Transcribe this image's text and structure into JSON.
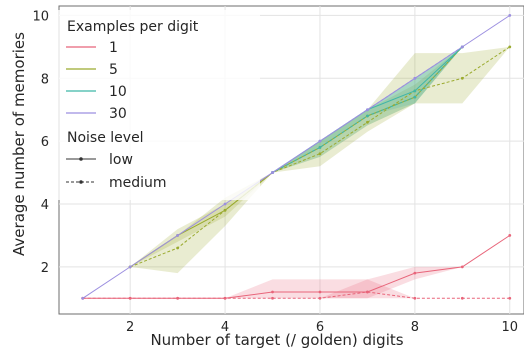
{
  "chart_data": {
    "type": "line",
    "xlabel": "Number of target (/ golden) digits",
    "ylabel": "Average number of memories",
    "xlim": [
      0.5,
      10.3
    ],
    "ylim": [
      0.5,
      10.3
    ],
    "x_ticks": [
      2,
      4,
      6,
      8,
      10
    ],
    "y_ticks": [
      2,
      4,
      6,
      8,
      10
    ],
    "x_tick_labels": [
      "2",
      "4",
      "6",
      "8",
      "10"
    ],
    "y_tick_labels": [
      "2",
      "4",
      "6",
      "8",
      "10"
    ],
    "grid": true,
    "legend": {
      "placement": "top-left",
      "title_hue": "Examples per digit",
      "title_style": "Noise level",
      "hue_entries": [
        {
          "label": "1",
          "color": "#e8657a"
        },
        {
          "label": "5",
          "color": "#9aaa2e"
        },
        {
          "label": "10",
          "color": "#3fb6a8"
        },
        {
          "label": "30",
          "color": "#9c8fe0"
        }
      ],
      "style_entries": [
        {
          "label": "low",
          "dash": "solid"
        },
        {
          "label": "medium",
          "dash": "dashed"
        }
      ]
    },
    "series": [
      {
        "examples": "1",
        "noise": "low",
        "color": "#e8657a",
        "x": [
          1,
          2,
          3,
          4,
          5,
          6,
          7,
          8,
          9,
          10
        ],
        "y": [
          1.0,
          1.0,
          1.0,
          1.0,
          1.2,
          1.2,
          1.2,
          1.8,
          2.0,
          3.0
        ],
        "band": [
          [
            1.0,
            1.0
          ],
          [
            1.0,
            1.0
          ],
          [
            1.0,
            1.0
          ],
          [
            1.0,
            1.0
          ],
          [
            1.0,
            1.6
          ],
          [
            1.0,
            1.6
          ],
          [
            1.0,
            1.6
          ],
          [
            1.6,
            2.0
          ],
          [
            2.0,
            2.0
          ],
          [
            3.0,
            3.0
          ]
        ]
      },
      {
        "examples": "1",
        "noise": "medium",
        "color": "#e8657a",
        "x": [
          1,
          2,
          3,
          4,
          5,
          6,
          7,
          8,
          9,
          10
        ],
        "y": [
          1.0,
          1.0,
          1.0,
          1.0,
          1.0,
          1.0,
          1.2,
          1.0,
          1.0,
          1.0
        ],
        "band": [
          [
            1.0,
            1.0
          ],
          [
            1.0,
            1.0
          ],
          [
            1.0,
            1.0
          ],
          [
            1.0,
            1.0
          ],
          [
            1.0,
            1.0
          ],
          [
            1.0,
            1.0
          ],
          [
            1.0,
            1.6
          ],
          [
            1.0,
            1.0
          ],
          [
            1.0,
            1.0
          ],
          [
            1.0,
            1.0
          ]
        ]
      },
      {
        "examples": "5",
        "noise": "low",
        "color": "#9aaa2e",
        "x": [
          2,
          3,
          4,
          5,
          6,
          7,
          8,
          9
        ],
        "y": [
          2.0,
          3.0,
          3.8,
          5.0,
          5.8,
          6.8,
          7.4,
          9.0
        ],
        "band": [
          [
            2.0,
            2.0
          ],
          [
            2.8,
            3.2
          ],
          [
            3.6,
            4.0
          ],
          [
            5.0,
            5.0
          ],
          [
            5.5,
            6.0
          ],
          [
            6.5,
            7.0
          ],
          [
            7.2,
            7.8
          ],
          [
            9.0,
            9.0
          ]
        ]
      },
      {
        "examples": "5",
        "noise": "medium",
        "color": "#9aaa2e",
        "x": [
          2,
          3,
          4,
          5,
          6,
          7,
          8,
          9,
          10
        ],
        "y": [
          2.0,
          2.6,
          3.8,
          5.0,
          5.6,
          6.6,
          7.6,
          8.0,
          9.0
        ],
        "band": [
          [
            2.0,
            2.0
          ],
          [
            1.8,
            3.0
          ],
          [
            3.3,
            4.2
          ],
          [
            5.0,
            5.0
          ],
          [
            5.2,
            6.0
          ],
          [
            6.3,
            7.0
          ],
          [
            7.2,
            8.8
          ],
          [
            7.2,
            8.8
          ],
          [
            9.0,
            9.0
          ]
        ]
      },
      {
        "examples": "10",
        "noise": "low",
        "color": "#3fb6a8",
        "x": [
          5,
          6,
          7,
          8,
          9
        ],
        "y": [
          5.0,
          6.0,
          7.0,
          7.6,
          9.0
        ],
        "band": [
          [
            5.0,
            5.0
          ],
          [
            5.8,
            6.0
          ],
          [
            6.8,
            7.0
          ],
          [
            7.2,
            8.0
          ],
          [
            9.0,
            9.0
          ]
        ]
      },
      {
        "examples": "10",
        "noise": "medium",
        "color": "#3fb6a8",
        "x": [
          5,
          6,
          7,
          8,
          9
        ],
        "y": [
          5.0,
          5.8,
          6.8,
          7.4,
          9.0
        ],
        "band": [
          [
            5.0,
            5.0
          ],
          [
            5.5,
            6.0
          ],
          [
            6.5,
            7.0
          ],
          [
            7.2,
            8.0
          ],
          [
            9.0,
            9.0
          ]
        ]
      },
      {
        "examples": "30",
        "noise": "low",
        "color": "#9c8fe0",
        "x": [
          1,
          2,
          3,
          4,
          5,
          6,
          7,
          8,
          9,
          10
        ],
        "y": [
          1,
          2,
          3,
          4,
          5,
          6,
          7,
          8,
          9,
          10
        ],
        "band": [
          [
            1,
            1
          ],
          [
            2,
            2
          ],
          [
            3,
            3
          ],
          [
            4,
            4
          ],
          [
            5,
            5
          ],
          [
            6,
            6
          ],
          [
            7,
            7
          ],
          [
            8,
            8
          ],
          [
            9,
            9
          ],
          [
            10,
            10
          ]
        ]
      },
      {
        "examples": "30",
        "noise": "medium",
        "color": "#9c8fe0",
        "x": [
          5,
          6,
          7,
          8,
          9
        ],
        "y": [
          5.0,
          6.0,
          7.0,
          8.0,
          9.0
        ],
        "band": [
          [
            5,
            5
          ],
          [
            6,
            6
          ],
          [
            7,
            7
          ],
          [
            8,
            8
          ],
          [
            9,
            9
          ]
        ]
      }
    ]
  }
}
